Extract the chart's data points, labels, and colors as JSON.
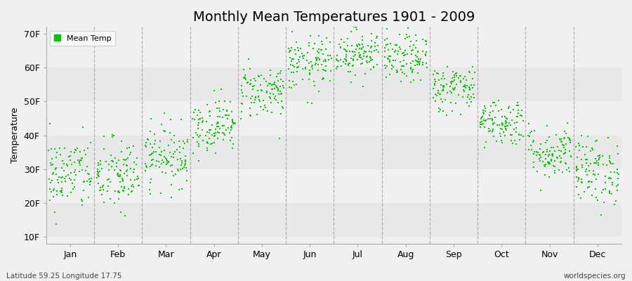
{
  "title": "Monthly Mean Temperatures 1901 - 2009",
  "ylabel": "Temperature",
  "xlabel_labels": [
    "Jan",
    "Feb",
    "Mar",
    "Apr",
    "May",
    "Jun",
    "Jul",
    "Aug",
    "Sep",
    "Oct",
    "Nov",
    "Dec"
  ],
  "ytick_labels": [
    "10F",
    "20F",
    "30F",
    "40F",
    "50F",
    "60F",
    "70F"
  ],
  "ytick_values": [
    10,
    20,
    30,
    40,
    50,
    60,
    70
  ],
  "ylim": [
    8,
    72
  ],
  "legend_label": "Mean Temp",
  "dot_color": "#00CC00",
  "bg_color": "#f0f0f0",
  "band_color_dark": "#e8e8e8",
  "band_color_light": "#f0f0f0",
  "footer_left": "Latitude 59.25 Longitude 17.75",
  "footer_right": "worldspecies.org",
  "title_fontsize": 14,
  "axis_fontsize": 9,
  "monthly_mean_F": [
    28.5,
    28.0,
    34.0,
    43.0,
    53.0,
    61.0,
    64.5,
    62.5,
    54.0,
    44.0,
    35.0,
    29.5
  ],
  "monthly_std_F": [
    5.5,
    5.5,
    4.5,
    4.0,
    4.0,
    4.0,
    3.5,
    3.5,
    3.5,
    3.5,
    4.0,
    5.0
  ],
  "n_years": 109,
  "dot_size": 3.5,
  "vline_color": "#888888",
  "vline_alpha": 0.6
}
